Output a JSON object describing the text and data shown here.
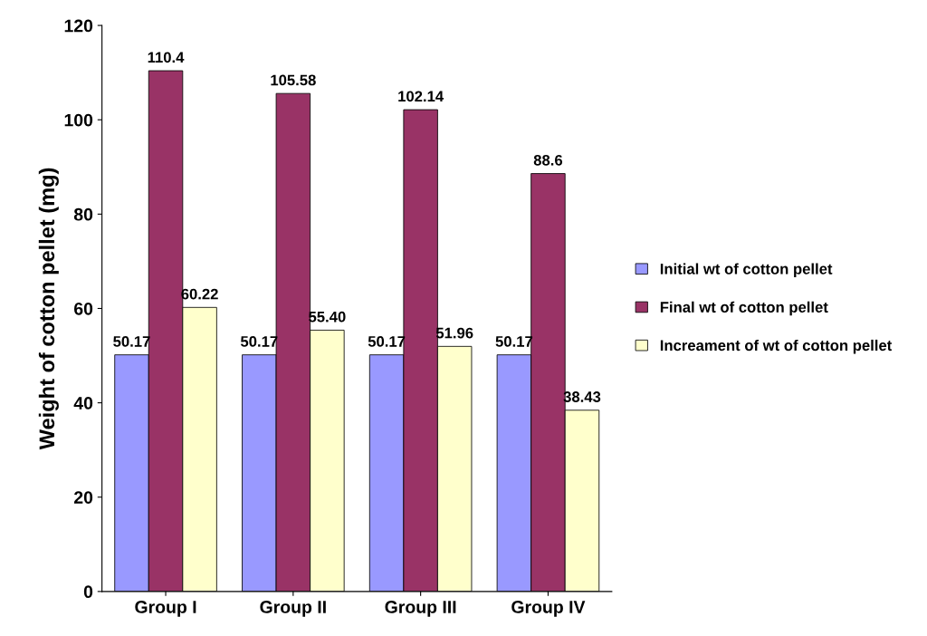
{
  "chart_data": {
    "type": "bar",
    "ylabel": "Weight of cotton pellet (mg)",
    "categories": [
      "Group I",
      "Group II",
      "Group III",
      "Group IV"
    ],
    "series": [
      {
        "name": "Initial wt of cotton pellet",
        "color": "#9999ff",
        "values": [
          50.17,
          50.17,
          50.17,
          50.17
        ],
        "value_labels": [
          "50.17",
          "50.17",
          "50.17",
          "50.17"
        ]
      },
      {
        "name": "Final wt of cotton pellet",
        "color": "#993366",
        "values": [
          110.4,
          105.58,
          102.14,
          88.6
        ],
        "value_labels": [
          "110.4",
          "105.58",
          "102.14",
          "88.6"
        ]
      },
      {
        "name": "Increament of wt of cotton pellet",
        "color": "#ffffcc",
        "values": [
          60.22,
          55.4,
          51.96,
          38.43
        ],
        "value_labels": [
          "60.22",
          "55.40",
          "51.96",
          "38.43"
        ]
      }
    ],
    "ylim": [
      0,
      120
    ],
    "yticks": [
      0,
      20,
      40,
      60,
      80,
      100,
      120
    ],
    "grid": false,
    "legend": "right"
  }
}
